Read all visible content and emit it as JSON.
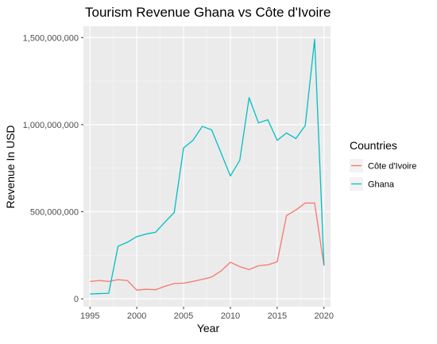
{
  "chart_data": {
    "type": "line",
    "title": "Tourism Revenue Ghana vs Côte d'Ivoire",
    "xlabel": "Year",
    "ylabel": "Revenue In USD",
    "xlim": [
      1994.3,
      2020.7
    ],
    "ylim": [
      -45000000,
      1565000000
    ],
    "xticks": [
      1995,
      2000,
      2005,
      2010,
      2015,
      2020
    ],
    "xtick_labels": [
      "1995",
      "2000",
      "2005",
      "2010",
      "2015",
      "2020"
    ],
    "yticks": [
      0,
      500000000,
      1000000000,
      1500000000
    ],
    "ytick_labels": [
      "0",
      "500,000,000",
      "1,000,000,000",
      "1,500,000,000"
    ],
    "grid": true,
    "legend": {
      "title": "Countries",
      "position": "right"
    },
    "x": [
      1995,
      1996,
      1997,
      1998,
      1999,
      2000,
      2001,
      2002,
      2003,
      2004,
      2005,
      2006,
      2007,
      2008,
      2009,
      2010,
      2011,
      2012,
      2013,
      2014,
      2015,
      2016,
      2017,
      2018,
      2019,
      2020
    ],
    "series": [
      {
        "name": "Côte d'Ivoire",
        "color": "#f8766d",
        "values": [
          100000000,
          105000000,
          100000000,
          110000000,
          105000000,
          50000000,
          55000000,
          52000000,
          72000000,
          88000000,
          90000000,
          100000000,
          112000000,
          125000000,
          160000000,
          210000000,
          185000000,
          168000000,
          190000000,
          195000000,
          212000000,
          478000000,
          510000000,
          550000000,
          550000000,
          190000000
        ]
      },
      {
        "name": "Ghana",
        "color": "#00bfc4",
        "values": [
          28000000,
          30000000,
          32000000,
          302000000,
          325000000,
          357000000,
          372000000,
          382000000,
          440000000,
          496000000,
          866000000,
          910000000,
          990000000,
          970000000,
          838000000,
          705000000,
          795000000,
          1155000000,
          1010000000,
          1028000000,
          910000000,
          952000000,
          920000000,
          995000000,
          1490000000,
          195000000
        ]
      }
    ]
  }
}
